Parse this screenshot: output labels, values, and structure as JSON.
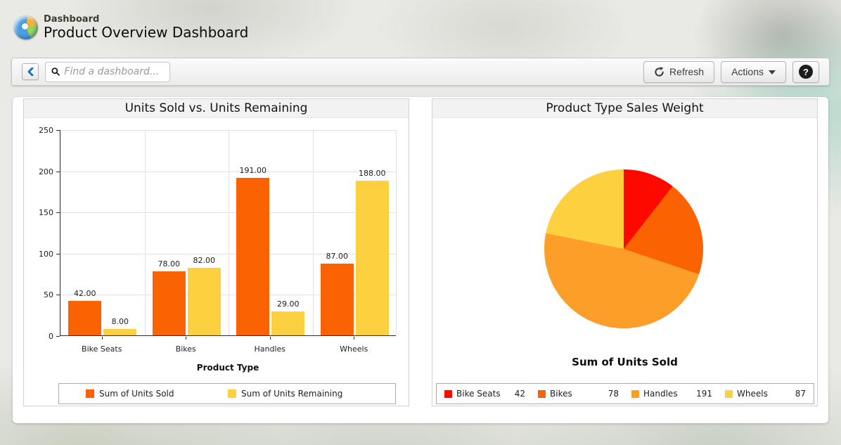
{
  "header": {
    "app_label": "Dashboard",
    "title": "Product Overview Dashboard"
  },
  "toolbar": {
    "search_placeholder": "Find a dashboard...",
    "refresh_label": "Refresh",
    "actions_label": "Actions",
    "help_label": "?"
  },
  "chart_data": [
    {
      "type": "bar",
      "title": "Units Sold vs. Units Remaining",
      "categories": [
        "Bike Seats",
        "Bikes",
        "Handles",
        "Wheels"
      ],
      "series": [
        {
          "name": "Sum of Units Sold",
          "color": "#FB6302",
          "values": [
            42,
            78,
            191,
            87
          ]
        },
        {
          "name": "Sum of Units Remaining",
          "color": "#FCD03E",
          "values": [
            8,
            82,
            29,
            188
          ]
        }
      ],
      "value_label_format": "2dp",
      "xlabel": "Product Type",
      "ylabel": "",
      "ylim": [
        0,
        250
      ],
      "yticks": [
        0,
        50,
        100,
        150,
        200,
        250
      ],
      "grid": true,
      "legend_position": "bottom"
    },
    {
      "type": "pie",
      "title": "Product Type Sales Weight",
      "label": "Sum of Units Sold",
      "start_angle_deg": 0,
      "direction": "clockwise",
      "slices": [
        {
          "name": "Bike Seats",
          "value": 42,
          "color": "#FE0900"
        },
        {
          "name": "Bikes",
          "value": 78,
          "color": "#FB6302"
        },
        {
          "name": "Handles",
          "value": 191,
          "color": "#FC9E27"
        },
        {
          "name": "Wheels",
          "value": 87,
          "color": "#FCD03E"
        }
      ],
      "legend_position": "bottom"
    }
  ]
}
